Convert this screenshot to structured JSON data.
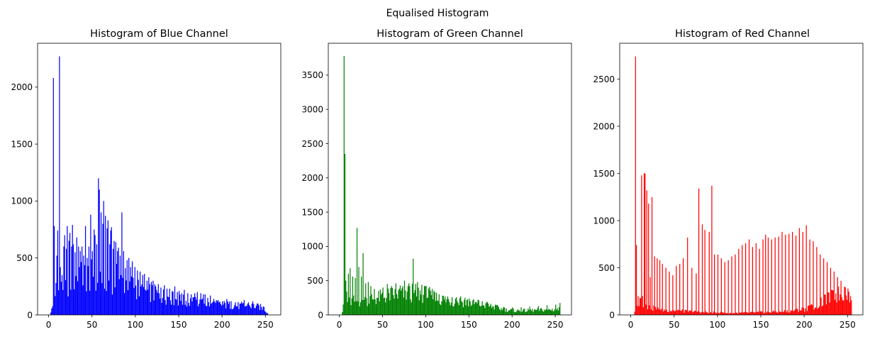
{
  "figure": {
    "suptitle": "Equalised Histogram"
  },
  "chart_data": [
    {
      "type": "bar",
      "title": "Histogram of Blue Channel",
      "color": "#0000ff",
      "xlabel": "",
      "ylabel": "",
      "xlim": [
        -12.75,
        267.75
      ],
      "ylim": [
        0,
        2385
      ],
      "xticks": [
        0,
        50,
        100,
        150,
        200,
        250
      ],
      "yticks": [
        0,
        500,
        1000,
        1500,
        2000
      ],
      "bins": 256,
      "bin_range": [
        0,
        256
      ],
      "profile": [
        [
          0,
          0
        ],
        [
          2,
          0
        ],
        [
          3,
          40
        ],
        [
          6,
          150
        ],
        [
          10,
          190
        ],
        [
          20,
          260
        ],
        [
          30,
          320
        ],
        [
          40,
          330
        ],
        [
          50,
          340
        ],
        [
          60,
          350
        ],
        [
          70,
          330
        ],
        [
          80,
          310
        ],
        [
          90,
          280
        ],
        [
          100,
          240
        ],
        [
          110,
          210
        ],
        [
          120,
          190
        ],
        [
          130,
          170
        ],
        [
          140,
          150
        ],
        [
          150,
          130
        ],
        [
          160,
          120
        ],
        [
          170,
          110
        ],
        [
          180,
          100
        ],
        [
          190,
          95
        ],
        [
          200,
          90
        ],
        [
          210,
          85
        ],
        [
          220,
          80
        ],
        [
          230,
          80
        ],
        [
          240,
          75
        ],
        [
          248,
          60
        ],
        [
          252,
          20
        ],
        [
          254,
          0
        ],
        [
          255,
          0
        ]
      ],
      "peaks": [
        [
          5,
          2080
        ],
        [
          6,
          780
        ],
        [
          8,
          280
        ],
        [
          9,
          520
        ],
        [
          10,
          740
        ],
        [
          12,
          2270
        ],
        [
          13,
          420
        ],
        [
          15,
          350
        ],
        [
          17,
          600
        ],
        [
          18,
          700
        ],
        [
          20,
          580
        ],
        [
          21,
          780
        ],
        [
          23,
          650
        ],
        [
          24,
          720
        ],
        [
          26,
          600
        ],
        [
          27,
          790
        ],
        [
          28,
          620
        ],
        [
          30,
          550
        ],
        [
          32,
          680
        ],
        [
          34,
          600
        ],
        [
          35,
          420
        ],
        [
          36,
          560
        ],
        [
          38,
          600
        ],
        [
          40,
          520
        ],
        [
          42,
          780
        ],
        [
          44,
          500
        ],
        [
          46,
          600
        ],
        [
          48,
          880
        ],
        [
          50,
          560
        ],
        [
          52,
          750
        ],
        [
          53,
          700
        ],
        [
          55,
          620
        ],
        [
          57,
          1200
        ],
        [
          58,
          1100
        ],
        [
          60,
          900
        ],
        [
          62,
          800
        ],
        [
          63,
          1000
        ],
        [
          65,
          870
        ],
        [
          67,
          760
        ],
        [
          68,
          830
        ],
        [
          70,
          620
        ],
        [
          71,
          740
        ],
        [
          72,
          770
        ],
        [
          74,
          580
        ],
        [
          75,
          650
        ],
        [
          77,
          640
        ],
        [
          79,
          560
        ],
        [
          80,
          590
        ],
        [
          82,
          520
        ],
        [
          84,
          900
        ],
        [
          86,
          560
        ],
        [
          88,
          410
        ],
        [
          90,
          480
        ],
        [
          92,
          500
        ],
        [
          94,
          420
        ],
        [
          96,
          470
        ],
        [
          99,
          420
        ],
        [
          102,
          390
        ],
        [
          105,
          380
        ],
        [
          108,
          350
        ],
        [
          110,
          360
        ],
        [
          113,
          300
        ],
        [
          115,
          330
        ],
        [
          118,
          290
        ],
        [
          120,
          300
        ],
        [
          123,
          250
        ],
        [
          126,
          270
        ],
        [
          129,
          240
        ],
        [
          133,
          260
        ],
        [
          136,
          230
        ],
        [
          139,
          230
        ],
        [
          142,
          210
        ],
        [
          145,
          250
        ],
        [
          148,
          200
        ],
        [
          150,
          210
        ],
        [
          153,
          190
        ],
        [
          156,
          220
        ],
        [
          160,
          190
        ],
        [
          164,
          180
        ],
        [
          168,
          190
        ],
        [
          171,
          200
        ],
        [
          175,
          190
        ],
        [
          178,
          180
        ],
        [
          180,
          180
        ],
        [
          183,
          150
        ],
        [
          186,
          170
        ],
        [
          190,
          140
        ],
        [
          195,
          130
        ],
        [
          200,
          120
        ],
        [
          205,
          140
        ],
        [
          210,
          120
        ],
        [
          215,
          110
        ],
        [
          220,
          100
        ],
        [
          225,
          130
        ],
        [
          230,
          110
        ],
        [
          235,
          120
        ],
        [
          240,
          100
        ],
        [
          244,
          95
        ],
        [
          248,
          70
        ]
      ]
    },
    {
      "type": "bar",
      "title": "Histogram of Green Channel",
      "color": "#008000",
      "xlabel": "",
      "ylabel": "",
      "xlim": [
        -12.8,
        268.8
      ],
      "ylim": [
        0,
        3965
      ],
      "xticks": [
        0,
        50,
        100,
        150,
        200,
        250
      ],
      "yticks": [
        0,
        500,
        1000,
        1500,
        2000,
        2500,
        3000,
        3500
      ],
      "bins": 256,
      "bin_range": [
        0,
        256
      ],
      "profile": [
        [
          0,
          0
        ],
        [
          3,
          0
        ],
        [
          4,
          100
        ],
        [
          8,
          170
        ],
        [
          15,
          200
        ],
        [
          25,
          200
        ],
        [
          40,
          240
        ],
        [
          60,
          290
        ],
        [
          75,
          310
        ],
        [
          90,
          320
        ],
        [
          100,
          300
        ],
        [
          110,
          260
        ],
        [
          120,
          220
        ],
        [
          130,
          210
        ],
        [
          140,
          195
        ],
        [
          150,
          180
        ],
        [
          160,
          160
        ],
        [
          170,
          140
        ],
        [
          180,
          110
        ],
        [
          190,
          80
        ],
        [
          200,
          65
        ],
        [
          210,
          60
        ],
        [
          220,
          65
        ],
        [
          230,
          70
        ],
        [
          240,
          75
        ],
        [
          250,
          80
        ],
        [
          255,
          80
        ]
      ],
      "peaks": [
        [
          5,
          3780
        ],
        [
          6,
          2350
        ],
        [
          7,
          500
        ],
        [
          8,
          340
        ],
        [
          10,
          600
        ],
        [
          12,
          680
        ],
        [
          15,
          560
        ],
        [
          18,
          540
        ],
        [
          20,
          1270
        ],
        [
          22,
          700
        ],
        [
          25,
          560
        ],
        [
          27,
          900
        ],
        [
          30,
          460
        ],
        [
          33,
          480
        ],
        [
          36,
          420
        ],
        [
          40,
          380
        ],
        [
          45,
          350
        ],
        [
          50,
          400
        ],
        [
          55,
          450
        ],
        [
          60,
          420
        ],
        [
          65,
          460
        ],
        [
          70,
          430
        ],
        [
          75,
          500
        ],
        [
          80,
          460
        ],
        [
          85,
          820
        ],
        [
          90,
          480
        ],
        [
          95,
          440
        ],
        [
          100,
          420
        ],
        [
          105,
          350
        ],
        [
          110,
          330
        ],
        [
          115,
          300
        ],
        [
          120,
          280
        ],
        [
          125,
          270
        ],
        [
          130,
          260
        ],
        [
          135,
          260
        ],
        [
          140,
          270
        ],
        [
          145,
          250
        ],
        [
          150,
          240
        ],
        [
          155,
          230
        ],
        [
          160,
          220
        ],
        [
          170,
          190
        ],
        [
          180,
          150
        ],
        [
          190,
          120
        ],
        [
          200,
          110
        ],
        [
          210,
          110
        ],
        [
          220,
          120
        ],
        [
          230,
          130
        ],
        [
          240,
          140
        ],
        [
          250,
          150
        ],
        [
          255,
          175
        ]
      ]
    },
    {
      "type": "bar",
      "title": "Histogram of Red Channel",
      "color": "#ff0000",
      "xlabel": "",
      "ylabel": "",
      "xlim": [
        -12.75,
        267.75
      ],
      "ylim": [
        0,
        2880
      ],
      "xticks": [
        0,
        50,
        100,
        150,
        200,
        250
      ],
      "yticks": [
        0,
        500,
        1000,
        1500,
        2000,
        2500
      ],
      "bins": 256,
      "bin_range": [
        0,
        256
      ],
      "profile": [
        [
          0,
          0
        ],
        [
          4,
          0
        ],
        [
          5,
          60
        ],
        [
          8,
          160
        ],
        [
          15,
          130
        ],
        [
          25,
          70
        ],
        [
          40,
          50
        ],
        [
          60,
          40
        ],
        [
          80,
          30
        ],
        [
          100,
          25
        ],
        [
          120,
          20
        ],
        [
          140,
          25
        ],
        [
          160,
          30
        ],
        [
          180,
          40
        ],
        [
          200,
          60
        ],
        [
          215,
          100
        ],
        [
          225,
          160
        ],
        [
          235,
          200
        ],
        [
          245,
          230
        ],
        [
          250,
          260
        ],
        [
          255,
          200
        ]
      ],
      "peaks": [
        [
          5,
          2740
        ],
        [
          6,
          740
        ],
        [
          8,
          200
        ],
        [
          10,
          180
        ],
        [
          12,
          1480
        ],
        [
          13,
          200
        ],
        [
          15,
          1500
        ],
        [
          16,
          1500
        ],
        [
          18,
          1320
        ],
        [
          20,
          1180
        ],
        [
          22,
          400
        ],
        [
          24,
          1250
        ],
        [
          27,
          620
        ],
        [
          30,
          600
        ],
        [
          33,
          580
        ],
        [
          36,
          540
        ],
        [
          40,
          500
        ],
        [
          44,
          460
        ],
        [
          48,
          420
        ],
        [
          52,
          520
        ],
        [
          56,
          540
        ],
        [
          60,
          600
        ],
        [
          65,
          820
        ],
        [
          70,
          500
        ],
        [
          75,
          440
        ],
        [
          78,
          1340
        ],
        [
          82,
          960
        ],
        [
          85,
          900
        ],
        [
          90,
          880
        ],
        [
          93,
          1370
        ],
        [
          96,
          640
        ],
        [
          100,
          640
        ],
        [
          104,
          600
        ],
        [
          108,
          560
        ],
        [
          112,
          580
        ],
        [
          116,
          620
        ],
        [
          120,
          640
        ],
        [
          124,
          700
        ],
        [
          128,
          740
        ],
        [
          132,
          760
        ],
        [
          136,
          800
        ],
        [
          140,
          720
        ],
        [
          144,
          760
        ],
        [
          148,
          700
        ],
        [
          152,
          800
        ],
        [
          155,
          850
        ],
        [
          158,
          820
        ],
        [
          162,
          800
        ],
        [
          166,
          820
        ],
        [
          170,
          830
        ],
        [
          174,
          880
        ],
        [
          178,
          850
        ],
        [
          182,
          860
        ],
        [
          186,
          880
        ],
        [
          190,
          840
        ],
        [
          194,
          920
        ],
        [
          198,
          880
        ],
        [
          202,
          950
        ],
        [
          206,
          800
        ],
        [
          210,
          780
        ],
        [
          214,
          720
        ],
        [
          218,
          640
        ],
        [
          222,
          600
        ],
        [
          226,
          560
        ],
        [
          230,
          500
        ],
        [
          234,
          460
        ],
        [
          238,
          400
        ],
        [
          242,
          360
        ],
        [
          246,
          300
        ],
        [
          250,
          280
        ],
        [
          253,
          200
        ]
      ]
    }
  ]
}
